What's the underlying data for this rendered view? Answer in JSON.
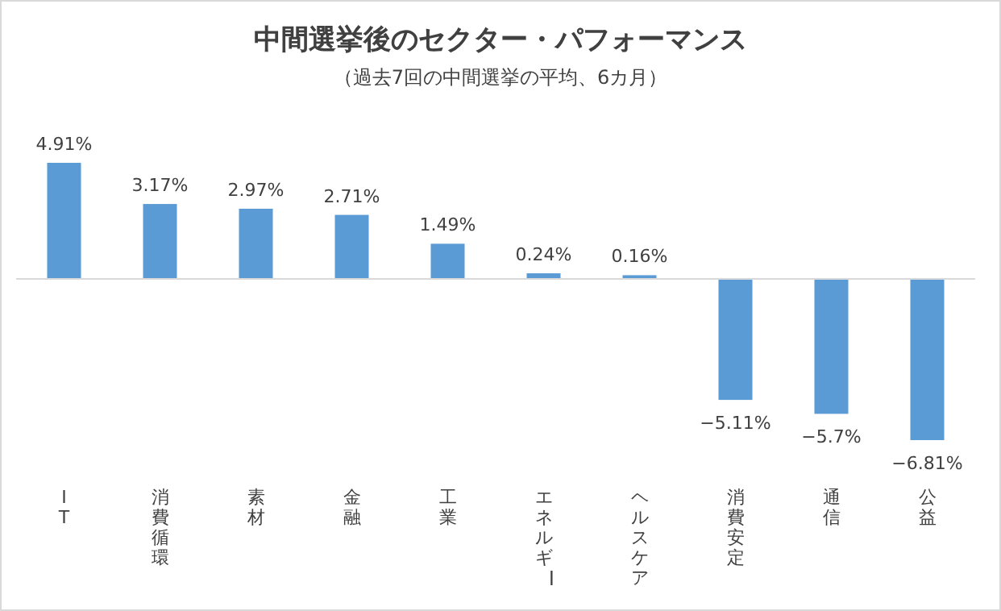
{
  "chart_data": {
    "type": "bar",
    "title": "中間選挙後のセクター・パフォーマンス",
    "subtitle": "（過去7回の中間選挙の平均、6カ月）",
    "categories": [
      "IT",
      "消費循環",
      "素材",
      "金融",
      "工業",
      "エネルギー",
      "ヘルスケア",
      "消費安定",
      "通信",
      "公益"
    ],
    "values": [
      4.91,
      3.17,
      2.97,
      2.71,
      1.49,
      0.24,
      0.16,
      -5.11,
      -5.7,
      -6.81
    ],
    "value_labels": [
      "4.91%",
      "3.17%",
      "2.97%",
      "2.71%",
      "1.49%",
      "0.24%",
      "0.16%",
      "−5.11%",
      "−5.7%",
      "−6.81%"
    ],
    "color": "#5b9bd5"
  }
}
